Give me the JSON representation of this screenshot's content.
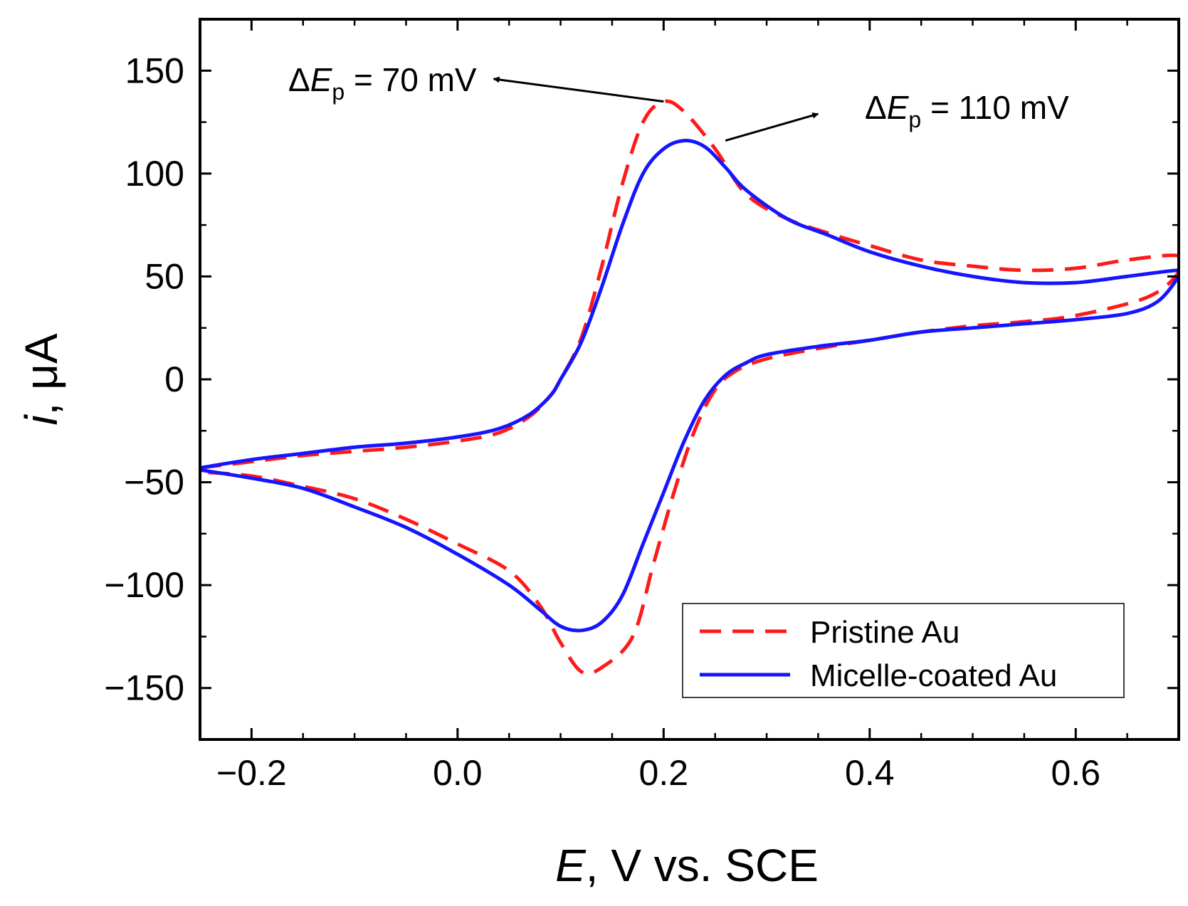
{
  "chart_data": {
    "type": "line",
    "title": "",
    "xlabel": {
      "var": "E",
      "unit": ", V vs. SCE"
    },
    "ylabel": {
      "var": "i",
      "unit": ", μA"
    },
    "xlim": [
      -0.25,
      0.7
    ],
    "ylim": [
      -175,
      175
    ],
    "x_ticks": [
      -0.2,
      0.0,
      0.2,
      0.4,
      0.6
    ],
    "x_tick_labels": [
      "−0.2",
      "0.0",
      "0.2",
      "0.4",
      "0.6"
    ],
    "y_ticks": [
      150,
      100,
      50,
      0,
      -50,
      -100,
      -150
    ],
    "y_tick_labels": [
      "150",
      "100",
      "50",
      "0",
      "−50",
      "−100",
      "−150"
    ],
    "legend_position": "lower-right",
    "series": [
      {
        "name": "Pristine Au",
        "color": "#ff1a1a",
        "style": "dashed",
        "points": [
          [
            -0.25,
            -43
          ],
          [
            -0.2,
            -40
          ],
          [
            -0.15,
            -37
          ],
          [
            -0.1,
            -35
          ],
          [
            -0.05,
            -33
          ],
          [
            0.0,
            -30
          ],
          [
            0.04,
            -26
          ],
          [
            0.07,
            -18
          ],
          [
            0.09,
            -8
          ],
          [
            0.1,
            0
          ],
          [
            0.12,
            20
          ],
          [
            0.14,
            55
          ],
          [
            0.16,
            95
          ],
          [
            0.18,
            125
          ],
          [
            0.2,
            135
          ],
          [
            0.22,
            130
          ],
          [
            0.25,
            112
          ],
          [
            0.28,
            90
          ],
          [
            0.32,
            78
          ],
          [
            0.36,
            71
          ],
          [
            0.4,
            65
          ],
          [
            0.45,
            58
          ],
          [
            0.5,
            55
          ],
          [
            0.55,
            53
          ],
          [
            0.6,
            54
          ],
          [
            0.65,
            58
          ],
          [
            0.7,
            60
          ],
          [
            0.7,
            52
          ],
          [
            0.67,
            40
          ],
          [
            0.6,
            31
          ],
          [
            0.55,
            28
          ],
          [
            0.5,
            26
          ],
          [
            0.45,
            23
          ],
          [
            0.4,
            19
          ],
          [
            0.35,
            15
          ],
          [
            0.3,
            10
          ],
          [
            0.27,
            4
          ],
          [
            0.25,
            -5
          ],
          [
            0.23,
            -25
          ],
          [
            0.21,
            -55
          ],
          [
            0.19,
            -90
          ],
          [
            0.17,
            -125
          ],
          [
            0.14,
            -140
          ],
          [
            0.12,
            -142
          ],
          [
            0.1,
            -128
          ],
          [
            0.08,
            -110
          ],
          [
            0.05,
            -93
          ],
          [
            0.0,
            -80
          ],
          [
            -0.05,
            -68
          ],
          [
            -0.1,
            -58
          ],
          [
            -0.15,
            -52
          ],
          [
            -0.2,
            -47
          ],
          [
            -0.25,
            -45
          ]
        ]
      },
      {
        "name": "Micelle-coated Au",
        "color": "#1515ff",
        "style": "solid",
        "points": [
          [
            -0.25,
            -43
          ],
          [
            -0.2,
            -39
          ],
          [
            -0.15,
            -36
          ],
          [
            -0.1,
            -33
          ],
          [
            -0.05,
            -31
          ],
          [
            0.0,
            -28
          ],
          [
            0.04,
            -24
          ],
          [
            0.07,
            -17
          ],
          [
            0.09,
            -8
          ],
          [
            0.1,
            0
          ],
          [
            0.12,
            18
          ],
          [
            0.14,
            45
          ],
          [
            0.16,
            75
          ],
          [
            0.18,
            100
          ],
          [
            0.2,
            112
          ],
          [
            0.22,
            116
          ],
          [
            0.24,
            113
          ],
          [
            0.26,
            103
          ],
          [
            0.28,
            92
          ],
          [
            0.32,
            78
          ],
          [
            0.36,
            70
          ],
          [
            0.4,
            62
          ],
          [
            0.45,
            55
          ],
          [
            0.5,
            50
          ],
          [
            0.55,
            47
          ],
          [
            0.6,
            47
          ],
          [
            0.65,
            50
          ],
          [
            0.7,
            53
          ],
          [
            0.7,
            50
          ],
          [
            0.68,
            38
          ],
          [
            0.65,
            32
          ],
          [
            0.6,
            29
          ],
          [
            0.55,
            27
          ],
          [
            0.5,
            25
          ],
          [
            0.45,
            23
          ],
          [
            0.4,
            19
          ],
          [
            0.35,
            16
          ],
          [
            0.3,
            12
          ],
          [
            0.28,
            8
          ],
          [
            0.26,
            2
          ],
          [
            0.24,
            -10
          ],
          [
            0.22,
            -30
          ],
          [
            0.2,
            -55
          ],
          [
            0.18,
            -80
          ],
          [
            0.16,
            -105
          ],
          [
            0.14,
            -118
          ],
          [
            0.12,
            -122
          ],
          [
            0.1,
            -120
          ],
          [
            0.08,
            -112
          ],
          [
            0.05,
            -100
          ],
          [
            0.0,
            -85
          ],
          [
            -0.05,
            -72
          ],
          [
            -0.1,
            -62
          ],
          [
            -0.15,
            -53
          ],
          [
            -0.2,
            -48
          ],
          [
            -0.25,
            -44
          ]
        ]
      }
    ],
    "annotations": [
      {
        "id": "pristine",
        "prefix": "Δ",
        "var": "E",
        "sub": "p",
        "text": " = 70 mV",
        "arrow_from": [
          0.2,
          135
        ],
        "arrow_to": [
          0.035,
          146
        ]
      },
      {
        "id": "micelle",
        "prefix": "Δ",
        "var": "E",
        "sub": "p",
        "text": " = 110 mV",
        "arrow_from": [
          0.26,
          116
        ],
        "arrow_to": [
          0.35,
          129
        ]
      }
    ]
  }
}
